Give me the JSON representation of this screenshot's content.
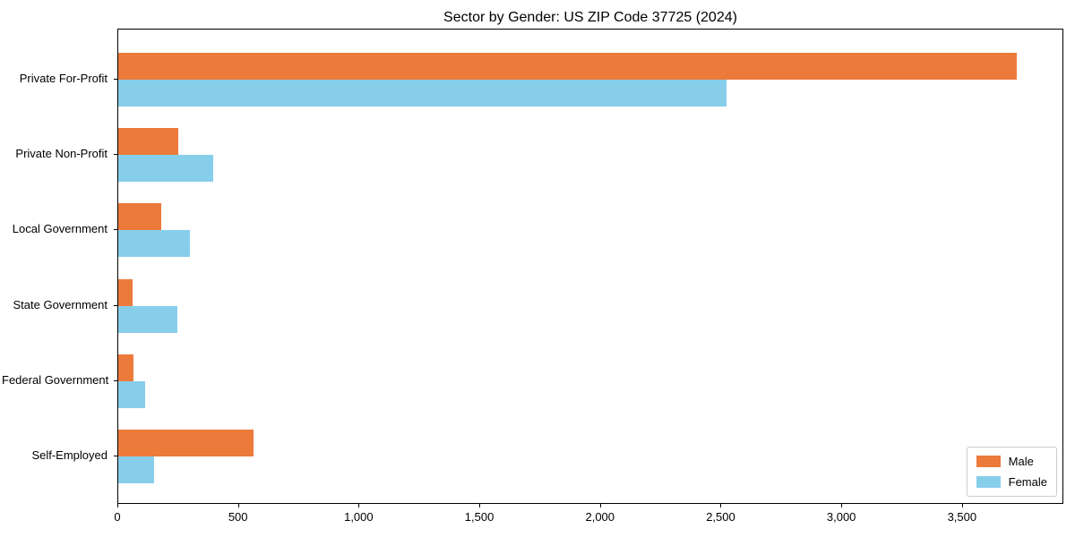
{
  "chart_data": {
    "type": "bar",
    "orientation": "horizontal",
    "title": "Sector by Gender: US ZIP Code 37725 (2024)",
    "xlabel": "",
    "ylabel": "",
    "grid": false,
    "legend_position": "lower right",
    "xlim": [
      0,
      3920
    ],
    "categories": [
      "Private For-Profit",
      "Private Non-Profit",
      "Local Government",
      "State Government",
      "Federal Government",
      "Self-Employed"
    ],
    "series": [
      {
        "name": "Male",
        "color": "#EC7A3B",
        "values": [
          3730,
          248,
          178,
          59,
          62,
          562
        ]
      },
      {
        "name": "Female",
        "color": "#87CEEB",
        "values": [
          2525,
          396,
          296,
          247,
          111,
          148
        ]
      }
    ],
    "x_ticks": [
      {
        "value": 0,
        "label": "0"
      },
      {
        "value": 500,
        "label": "500"
      },
      {
        "value": 1000,
        "label": "1,000"
      },
      {
        "value": 1500,
        "label": "1,500"
      },
      {
        "value": 2000,
        "label": "2,000"
      },
      {
        "value": 2500,
        "label": "2,500"
      },
      {
        "value": 3000,
        "label": "3,000"
      },
      {
        "value": 3500,
        "label": "3,500"
      }
    ],
    "colors": {
      "spine": "#000000",
      "legend_border": "#cccccc",
      "background": "#ffffff"
    }
  }
}
